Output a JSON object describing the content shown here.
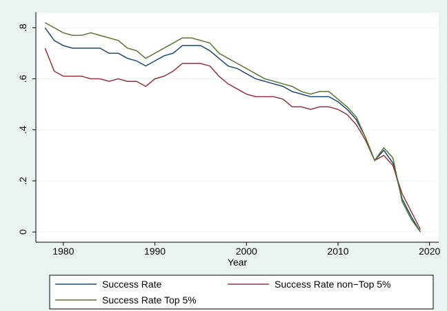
{
  "chart_data": {
    "type": "line",
    "x_label": "Year",
    "x": [
      1978,
      1979,
      1980,
      1981,
      1982,
      1983,
      1984,
      1985,
      1986,
      1987,
      1988,
      1989,
      1990,
      1991,
      1992,
      1993,
      1994,
      1995,
      1996,
      1997,
      1998,
      1999,
      2000,
      2001,
      2002,
      2003,
      2004,
      2005,
      2006,
      2007,
      2008,
      2009,
      2010,
      2011,
      2012,
      2013,
      2014,
      2015,
      2016,
      2017,
      2018,
      2019
    ],
    "series": [
      {
        "name": "Success Rate",
        "color": "#1a476f",
        "values": [
          0.8,
          0.75,
          0.73,
          0.72,
          0.72,
          0.72,
          0.72,
          0.7,
          0.7,
          0.68,
          0.67,
          0.65,
          0.67,
          0.69,
          0.7,
          0.73,
          0.73,
          0.73,
          0.71,
          0.68,
          0.65,
          0.64,
          0.62,
          0.6,
          0.59,
          0.58,
          0.57,
          0.55,
          0.54,
          0.53,
          0.53,
          0.53,
          0.51,
          0.48,
          0.44,
          0.37,
          0.28,
          0.32,
          0.27,
          0.13,
          0.06,
          0.0
        ]
      },
      {
        "name": "Success Rate non−Top 5%",
        "color": "#90353b",
        "values": [
          0.72,
          0.63,
          0.61,
          0.61,
          0.61,
          0.6,
          0.6,
          0.59,
          0.6,
          0.59,
          0.59,
          0.57,
          0.6,
          0.61,
          0.63,
          0.66,
          0.66,
          0.66,
          0.65,
          0.61,
          0.58,
          0.56,
          0.54,
          0.53,
          0.53,
          0.53,
          0.52,
          0.49,
          0.49,
          0.48,
          0.49,
          0.49,
          0.48,
          0.46,
          0.42,
          0.36,
          0.28,
          0.3,
          0.26,
          0.15,
          0.08,
          0.01
        ]
      },
      {
        "name": "Success Rate Top 5%",
        "color": "#55752f",
        "values": [
          0.82,
          0.8,
          0.78,
          0.77,
          0.77,
          0.78,
          0.77,
          0.76,
          0.75,
          0.72,
          0.71,
          0.68,
          0.7,
          0.72,
          0.74,
          0.76,
          0.76,
          0.75,
          0.74,
          0.7,
          0.68,
          0.66,
          0.64,
          0.62,
          0.6,
          0.59,
          0.58,
          0.57,
          0.55,
          0.54,
          0.55,
          0.55,
          0.52,
          0.49,
          0.45,
          0.37,
          0.28,
          0.33,
          0.29,
          0.12,
          0.05,
          0.0
        ]
      }
    ],
    "xlim": [
      1977,
      2021
    ],
    "xticks": [
      1980,
      1990,
      2000,
      2010,
      2020
    ],
    "ylim": [
      -0.04,
      0.86
    ],
    "yticks": [
      0,
      {
        "value": 0.2,
        "label": ".2"
      },
      {
        "value": 0.4,
        "label": ".4"
      },
      {
        "value": 0.6,
        "label": ".6"
      },
      {
        "value": 0.8,
        "label": ".8"
      }
    ],
    "grid": true,
    "legend": "bottom"
  }
}
